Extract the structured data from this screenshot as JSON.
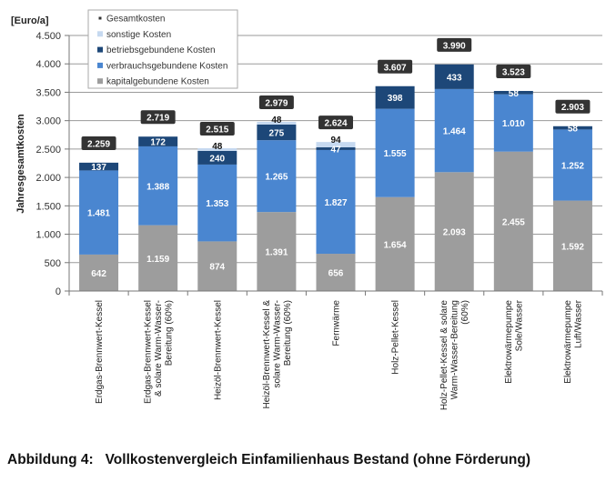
{
  "caption": "Abbildung 4:   Vollkostenvergleich Einfamilienhaus Bestand (ohne Förderung)",
  "chart_data": {
    "type": "bar",
    "stacked": true,
    "title": "",
    "unit_label": "[Euro/a]",
    "xlabel": "",
    "ylabel": "Jahresgesamtkosten",
    "ylim": [
      0,
      4500
    ],
    "yticks": [
      0,
      500,
      1000,
      1500,
      2000,
      2500,
      3000,
      3500,
      4000,
      4500
    ],
    "ytick_labels": [
      "0",
      "500",
      "1.000",
      "1.500",
      "2.000",
      "2.500",
      "3.000",
      "3.500",
      "4.000",
      "4.500"
    ],
    "grid": true,
    "legend_position": "top-left",
    "categories": [
      [
        "Erdgas-Brennwert-Kessel"
      ],
      [
        "Erdgas-Brennwert-Kessel",
        "& solare Warm-Wasser-",
        "Bereitung (60%)"
      ],
      [
        "Heizöl-Brennwert-Kessel"
      ],
      [
        "Heizöl-Brennwert-Kessel &",
        "solare Warm-Wasser-",
        "Bereitung (60%)"
      ],
      [
        "Fernwärme"
      ],
      [
        "Holz-Pellet-Kessel"
      ],
      [
        "Holz-Pellet-Kessel & solare",
        "Warm-Wasser-Bereitung",
        "(60%)"
      ],
      [
        "Elektrowärmepumpe",
        "Sole/Wasser"
      ],
      [
        "Elektrowärmepumpe",
        "Luft/Wasser"
      ]
    ],
    "series": [
      {
        "name": "kapitalgebundene Kosten",
        "color": "#9d9d9d",
        "label_color": "#ffffff",
        "values": [
          642,
          1159,
          874,
          1391,
          656,
          1654,
          2093,
          2455,
          1592
        ],
        "labels": [
          "642",
          "1.159",
          "874",
          "1.391",
          "656",
          "1.654",
          "2.093",
          "2.455",
          "1.592"
        ]
      },
      {
        "name": "verbrauchsgebundene Kosten",
        "color": "#4a86d0",
        "label_color": "#ffffff",
        "values": [
          1481,
          1388,
          1353,
          1265,
          1827,
          1555,
          1464,
          1010,
          1252
        ],
        "labels": [
          "1.481",
          "1.388",
          "1.353",
          "1.265",
          "1.827",
          "1.555",
          "1.464",
          "1.010",
          "1.252"
        ]
      },
      {
        "name": "betriebsgebundene Kosten",
        "color": "#1d4778",
        "label_color": "#ffffff",
        "values": [
          137,
          172,
          240,
          275,
          47,
          398,
          433,
          58,
          58
        ],
        "labels": [
          "137",
          "172",
          "240",
          "275",
          "47",
          "398",
          "433",
          "58",
          "58"
        ]
      },
      {
        "name": "sonstige Kosten",
        "color": "#c6d9f0",
        "label_color": "#111111",
        "values": [
          0,
          0,
          48,
          48,
          94,
          0,
          0,
          0,
          0
        ],
        "labels": [
          "",
          "",
          "48",
          "48",
          "94",
          "",
          "",
          "",
          ""
        ]
      }
    ],
    "totals": {
      "name": "Gesamtkosten",
      "color": "#333333",
      "values": [
        2259,
        2719,
        2515,
        2979,
        2624,
        3607,
        3990,
        3523,
        2903
      ],
      "labels": [
        "2.259",
        "2.719",
        "2.515",
        "2.979",
        "2.624",
        "3.607",
        "3.990",
        "3.523",
        "2.903"
      ]
    },
    "legend": [
      {
        "name": "Gesamtkosten",
        "color": "#333333"
      },
      {
        "name": "sonstige Kosten",
        "color": "#c6d9f0"
      },
      {
        "name": "betriebsgebundene Kosten",
        "color": "#1d4778"
      },
      {
        "name": "verbrauchsgebundene Kosten",
        "color": "#4a86d0"
      },
      {
        "name": "kapitalgebundene Kosten",
        "color": "#9d9d9d"
      }
    ]
  }
}
